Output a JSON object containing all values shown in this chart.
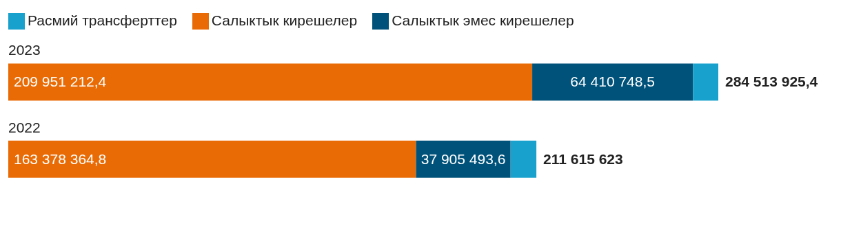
{
  "chart_data": {
    "type": "bar",
    "orientation": "horizontal",
    "stacked": true,
    "categories": [
      "2023",
      "2022"
    ],
    "series": [
      {
        "name": "Салыктык кирешелер",
        "color": "#e96b05",
        "values": [
          209951212.4,
          163378364.8
        ],
        "value_labels": [
          "209 951 212,4",
          "163 378 364,8"
        ]
      },
      {
        "name": "Салыктык эмес кирешелер",
        "color": "#00527a",
        "values": [
          64410748.5,
          37905493.6
        ],
        "value_labels": [
          "64 410 748,5",
          "37 905 493,6"
        ]
      },
      {
        "name": "Расмий трансферттер",
        "color": "#18a1cd",
        "values": [
          10151964.5,
          10331764.6
        ]
      }
    ],
    "totals": [
      "284 513 925,4",
      "211 615 623"
    ],
    "legend": "top left",
    "grid": false
  }
}
